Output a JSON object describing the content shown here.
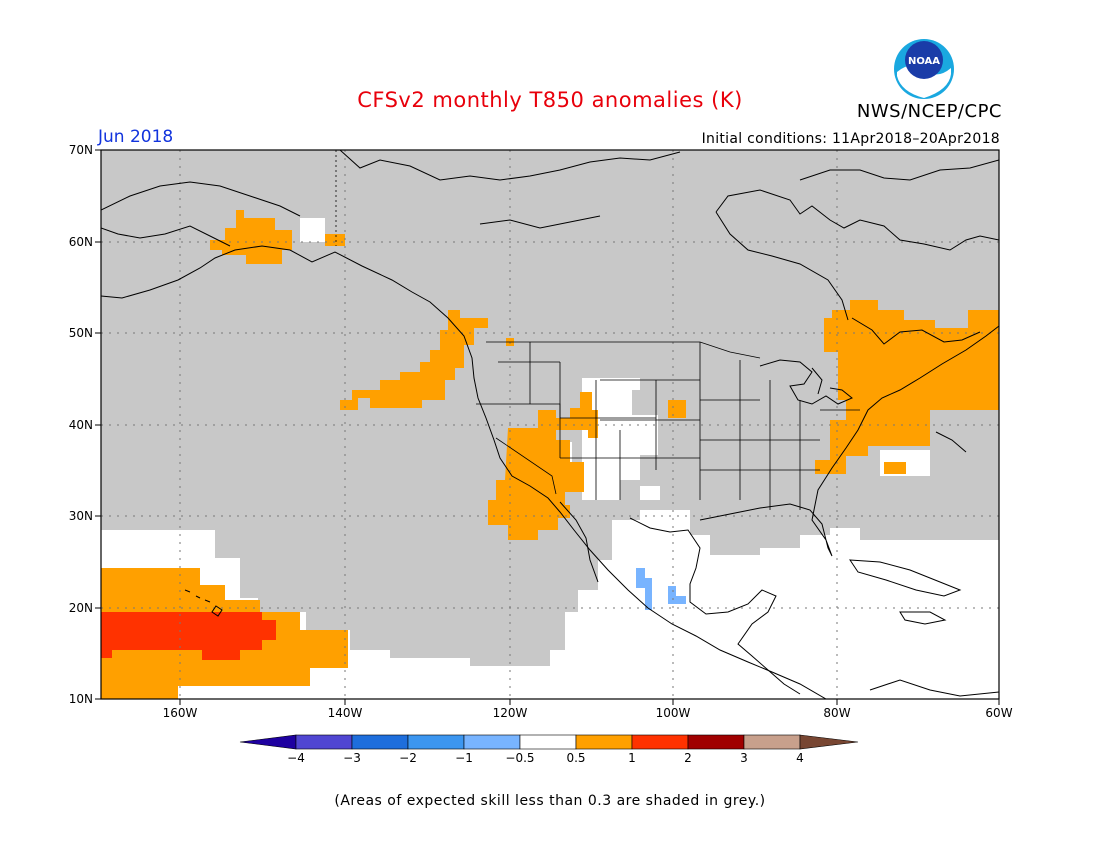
{
  "title": "CFSv2 monthly T850 anomalies (K)",
  "organization": "NWS/NCEP/CPC",
  "logo_text": "NOAA",
  "period": "Jun 2018",
  "initial_conditions": "Initial conditions: 11Apr2018–20Apr2018",
  "map": {
    "lat_labels": [
      "70N",
      "60N",
      "50N",
      "40N",
      "30N",
      "20N",
      "10N"
    ],
    "lon_labels": [
      "160W",
      "140W",
      "120W",
      "100W",
      "80W",
      "60W"
    ],
    "colors": {
      "skill_grey": "#c8c8c8",
      "ocean_land": "#ffffff",
      "warm_0_5_1": "#ffa000",
      "warm_1_2": "#ff3200",
      "cold_m1_m0_5": "#78b4ff"
    }
  },
  "colorbar": {
    "labels": [
      "−4",
      "−3",
      "−2",
      "−1",
      "−0.5",
      "0.5",
      "1",
      "2",
      "3",
      "4"
    ],
    "colors": [
      "#1e00a0",
      "#5046d2",
      "#1e6edc",
      "#3c96f0",
      "#78b4ff",
      "#ffffff",
      "#ffa000",
      "#ff3200",
      "#a00000",
      "#c8a08c",
      "#784632"
    ]
  },
  "footnote": "(Areas of expected skill less than 0.3 are shaded in grey.)"
}
